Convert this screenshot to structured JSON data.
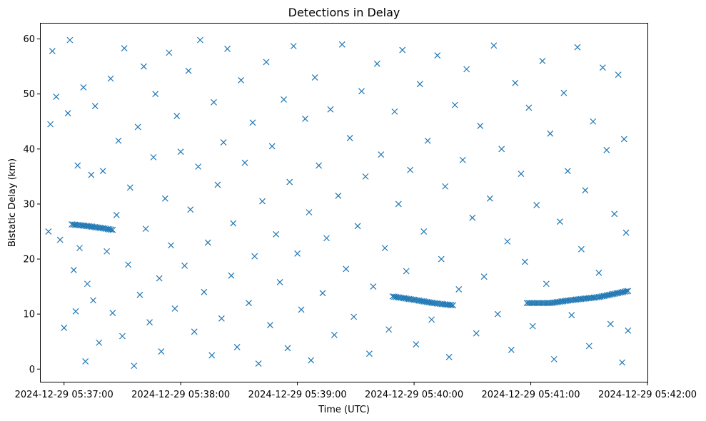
{
  "chart_data": {
    "type": "scatter",
    "title": "Detections in Delay",
    "xlabel": "Time (UTC)",
    "ylabel": "Bistatic Delay (km)",
    "marker": "x",
    "color": "#1f77b4",
    "grid": false,
    "legend": false,
    "x_axis": {
      "type": "time",
      "range": [
        "2024-12-29 05:36:48",
        "2024-12-29 05:42:00"
      ],
      "ticks": [
        "2024-12-29 05:37:00",
        "2024-12-29 05:38:00",
        "2024-12-29 05:39:00",
        "2024-12-29 05:40:00",
        "2024-12-29 05:41:00",
        "2024-12-29 05:42:00"
      ]
    },
    "y_axis": {
      "range": [
        -2.3,
        62.8
      ],
      "ticks": [
        0,
        10,
        20,
        30,
        40,
        50,
        60
      ]
    },
    "tracks": [
      {
        "points": [
          [
            "2024-12-29 05:37:04",
            26.3
          ],
          [
            "2024-12-29 05:37:12",
            26.0
          ],
          [
            "2024-12-29 05:37:20",
            25.6
          ],
          [
            "2024-12-29 05:37:25",
            25.3
          ]
        ]
      },
      {
        "points": [
          [
            "2024-12-29 05:39:49",
            13.2
          ],
          [
            "2024-12-29 05:40:00",
            12.6
          ],
          [
            "2024-12-29 05:40:10",
            12.0
          ],
          [
            "2024-12-29 05:40:20",
            11.6
          ]
        ]
      },
      {
        "points": [
          [
            "2024-12-29 05:40:58",
            12.0
          ],
          [
            "2024-12-29 05:41:10",
            12.0
          ],
          [
            "2024-12-29 05:41:20",
            12.5
          ],
          [
            "2024-12-29 05:41:35",
            13.1
          ],
          [
            "2024-12-29 05:41:50",
            14.2
          ]
        ]
      }
    ],
    "points": [
      [
        "2024-12-29 05:36:52",
        25.0
      ],
      [
        "2024-12-29 05:36:53",
        44.5
      ],
      [
        "2024-12-29 05:36:54",
        57.8
      ],
      [
        "2024-12-29 05:36:56",
        49.5
      ],
      [
        "2024-12-29 05:36:58",
        23.5
      ],
      [
        "2024-12-29 05:37:00",
        7.5
      ],
      [
        "2024-12-29 05:37:02",
        46.5
      ],
      [
        "2024-12-29 05:37:03",
        59.8
      ],
      [
        "2024-12-29 05:37:05",
        18.0
      ],
      [
        "2024-12-29 05:37:06",
        10.5
      ],
      [
        "2024-12-29 05:37:07",
        37.0
      ],
      [
        "2024-12-29 05:37:08",
        22.0
      ],
      [
        "2024-12-29 05:37:10",
        51.2
      ],
      [
        "2024-12-29 05:37:11",
        1.4
      ],
      [
        "2024-12-29 05:37:12",
        15.5
      ],
      [
        "2024-12-29 05:37:14",
        35.3
      ],
      [
        "2024-12-29 05:37:15",
        12.5
      ],
      [
        "2024-12-29 05:37:16",
        47.8
      ],
      [
        "2024-12-29 05:37:18",
        4.8
      ],
      [
        "2024-12-29 05:37:20",
        36.0
      ],
      [
        "2024-12-29 05:37:22",
        21.4
      ],
      [
        "2024-12-29 05:37:24",
        52.8
      ],
      [
        "2024-12-29 05:37:25",
        10.2
      ],
      [
        "2024-12-29 05:37:27",
        28.0
      ],
      [
        "2024-12-29 05:37:28",
        41.5
      ],
      [
        "2024-12-29 05:37:30",
        6.0
      ],
      [
        "2024-12-29 05:37:31",
        58.3
      ],
      [
        "2024-12-29 05:37:33",
        19.0
      ],
      [
        "2024-12-29 05:37:34",
        33.0
      ],
      [
        "2024-12-29 05:37:36",
        0.6
      ],
      [
        "2024-12-29 05:37:38",
        44.0
      ],
      [
        "2024-12-29 05:37:39",
        13.5
      ],
      [
        "2024-12-29 05:37:41",
        55.0
      ],
      [
        "2024-12-29 05:37:42",
        25.5
      ],
      [
        "2024-12-29 05:37:44",
        8.5
      ],
      [
        "2024-12-29 05:37:46",
        38.5
      ],
      [
        "2024-12-29 05:37:47",
        50.0
      ],
      [
        "2024-12-29 05:37:49",
        16.5
      ],
      [
        "2024-12-29 05:37:50",
        3.2
      ],
      [
        "2024-12-29 05:37:52",
        31.0
      ],
      [
        "2024-12-29 05:37:54",
        57.5
      ],
      [
        "2024-12-29 05:37:55",
        22.5
      ],
      [
        "2024-12-29 05:37:57",
        11.0
      ],
      [
        "2024-12-29 05:37:58",
        46.0
      ],
      [
        "2024-12-29 05:38:00",
        39.5
      ],
      [
        "2024-12-29 05:38:02",
        18.8
      ],
      [
        "2024-12-29 05:38:04",
        54.2
      ],
      [
        "2024-12-29 05:38:05",
        29.0
      ],
      [
        "2024-12-29 05:38:07",
        6.8
      ],
      [
        "2024-12-29 05:38:09",
        36.8
      ],
      [
        "2024-12-29 05:38:10",
        59.8
      ],
      [
        "2024-12-29 05:38:12",
        14.0
      ],
      [
        "2024-12-29 05:38:14",
        23.0
      ],
      [
        "2024-12-29 05:38:16",
        2.5
      ],
      [
        "2024-12-29 05:38:17",
        48.5
      ],
      [
        "2024-12-29 05:38:19",
        33.5
      ],
      [
        "2024-12-29 05:38:21",
        9.2
      ],
      [
        "2024-12-29 05:38:22",
        41.2
      ],
      [
        "2024-12-29 05:38:24",
        58.2
      ],
      [
        "2024-12-29 05:38:26",
        17.0
      ],
      [
        "2024-12-29 05:38:27",
        26.5
      ],
      [
        "2024-12-29 05:38:29",
        4.0
      ],
      [
        "2024-12-29 05:38:31",
        52.5
      ],
      [
        "2024-12-29 05:38:33",
        37.5
      ],
      [
        "2024-12-29 05:38:35",
        12.0
      ],
      [
        "2024-12-29 05:38:37",
        44.8
      ],
      [
        "2024-12-29 05:38:38",
        20.5
      ],
      [
        "2024-12-29 05:38:40",
        1.0
      ],
      [
        "2024-12-29 05:38:42",
        30.5
      ],
      [
        "2024-12-29 05:38:44",
        55.8
      ],
      [
        "2024-12-29 05:38:46",
        8.0
      ],
      [
        "2024-12-29 05:38:47",
        40.5
      ],
      [
        "2024-12-29 05:38:49",
        24.5
      ],
      [
        "2024-12-29 05:38:51",
        15.8
      ],
      [
        "2024-12-29 05:38:53",
        49.0
      ],
      [
        "2024-12-29 05:38:55",
        3.8
      ],
      [
        "2024-12-29 05:38:56",
        34.0
      ],
      [
        "2024-12-29 05:38:58",
        58.7
      ],
      [
        "2024-12-29 05:39:00",
        21.0
      ],
      [
        "2024-12-29 05:39:02",
        10.8
      ],
      [
        "2024-12-29 05:39:04",
        45.5
      ],
      [
        "2024-12-29 05:39:06",
        28.5
      ],
      [
        "2024-12-29 05:39:07",
        1.6
      ],
      [
        "2024-12-29 05:39:09",
        53.0
      ],
      [
        "2024-12-29 05:39:11",
        37.0
      ],
      [
        "2024-12-29 05:39:13",
        13.8
      ],
      [
        "2024-12-29 05:39:15",
        23.8
      ],
      [
        "2024-12-29 05:39:17",
        47.2
      ],
      [
        "2024-12-29 05:39:19",
        6.2
      ],
      [
        "2024-12-29 05:39:21",
        31.5
      ],
      [
        "2024-12-29 05:39:23",
        59.0
      ],
      [
        "2024-12-29 05:39:25",
        18.2
      ],
      [
        "2024-12-29 05:39:27",
        42.0
      ],
      [
        "2024-12-29 05:39:29",
        9.5
      ],
      [
        "2024-12-29 05:39:31",
        26.0
      ],
      [
        "2024-12-29 05:39:33",
        50.5
      ],
      [
        "2024-12-29 05:39:35",
        35.0
      ],
      [
        "2024-12-29 05:39:37",
        2.8
      ],
      [
        "2024-12-29 05:39:39",
        15.0
      ],
      [
        "2024-12-29 05:39:41",
        55.5
      ],
      [
        "2024-12-29 05:39:43",
        39.0
      ],
      [
        "2024-12-29 05:39:45",
        22.0
      ],
      [
        "2024-12-29 05:39:47",
        7.2
      ],
      [
        "2024-12-29 05:39:50",
        46.8
      ],
      [
        "2024-12-29 05:39:52",
        30.0
      ],
      [
        "2024-12-29 05:39:54",
        58.0
      ],
      [
        "2024-12-29 05:39:56",
        17.8
      ],
      [
        "2024-12-29 05:39:58",
        36.2
      ],
      [
        "2024-12-29 05:40:01",
        4.5
      ],
      [
        "2024-12-29 05:40:03",
        51.8
      ],
      [
        "2024-12-29 05:40:05",
        25.0
      ],
      [
        "2024-12-29 05:40:07",
        41.5
      ],
      [
        "2024-12-29 05:40:09",
        9.0
      ],
      [
        "2024-12-29 05:40:12",
        57.0
      ],
      [
        "2024-12-29 05:40:14",
        20.0
      ],
      [
        "2024-12-29 05:40:16",
        33.2
      ],
      [
        "2024-12-29 05:40:18",
        2.2
      ],
      [
        "2024-12-29 05:40:21",
        48.0
      ],
      [
        "2024-12-29 05:40:23",
        14.5
      ],
      [
        "2024-12-29 05:40:25",
        38.0
      ],
      [
        "2024-12-29 05:40:27",
        54.5
      ],
      [
        "2024-12-29 05:40:30",
        27.5
      ],
      [
        "2024-12-29 05:40:32",
        6.5
      ],
      [
        "2024-12-29 05:40:34",
        44.2
      ],
      [
        "2024-12-29 05:40:36",
        16.8
      ],
      [
        "2024-12-29 05:40:39",
        31.0
      ],
      [
        "2024-12-29 05:40:41",
        58.8
      ],
      [
        "2024-12-29 05:40:43",
        10.0
      ],
      [
        "2024-12-29 05:40:45",
        40.0
      ],
      [
        "2024-12-29 05:40:48",
        23.2
      ],
      [
        "2024-12-29 05:40:50",
        3.5
      ],
      [
        "2024-12-29 05:40:52",
        52.0
      ],
      [
        "2024-12-29 05:40:55",
        35.5
      ],
      [
        "2024-12-29 05:40:57",
        19.5
      ],
      [
        "2024-12-29 05:40:59",
        47.5
      ],
      [
        "2024-12-29 05:41:01",
        7.8
      ],
      [
        "2024-12-29 05:41:03",
        29.8
      ],
      [
        "2024-12-29 05:41:06",
        56.0
      ],
      [
        "2024-12-29 05:41:08",
        15.5
      ],
      [
        "2024-12-29 05:41:10",
        42.8
      ],
      [
        "2024-12-29 05:41:12",
        1.8
      ],
      [
        "2024-12-29 05:41:15",
        26.8
      ],
      [
        "2024-12-29 05:41:17",
        50.2
      ],
      [
        "2024-12-29 05:41:19",
        36.0
      ],
      [
        "2024-12-29 05:41:21",
        9.8
      ],
      [
        "2024-12-29 05:41:24",
        58.5
      ],
      [
        "2024-12-29 05:41:26",
        21.8
      ],
      [
        "2024-12-29 05:41:28",
        32.5
      ],
      [
        "2024-12-29 05:41:30",
        4.2
      ],
      [
        "2024-12-29 05:41:32",
        45.0
      ],
      [
        "2024-12-29 05:41:35",
        17.5
      ],
      [
        "2024-12-29 05:41:37",
        54.8
      ],
      [
        "2024-12-29 05:41:39",
        39.8
      ],
      [
        "2024-12-29 05:41:41",
        8.2
      ],
      [
        "2024-12-29 05:41:43",
        28.2
      ],
      [
        "2024-12-29 05:41:45",
        53.5
      ],
      [
        "2024-12-29 05:41:47",
        1.2
      ],
      [
        "2024-12-29 05:41:48",
        41.8
      ],
      [
        "2024-12-29 05:41:49",
        24.8
      ],
      [
        "2024-12-29 05:41:50",
        7.0
      ]
    ]
  }
}
